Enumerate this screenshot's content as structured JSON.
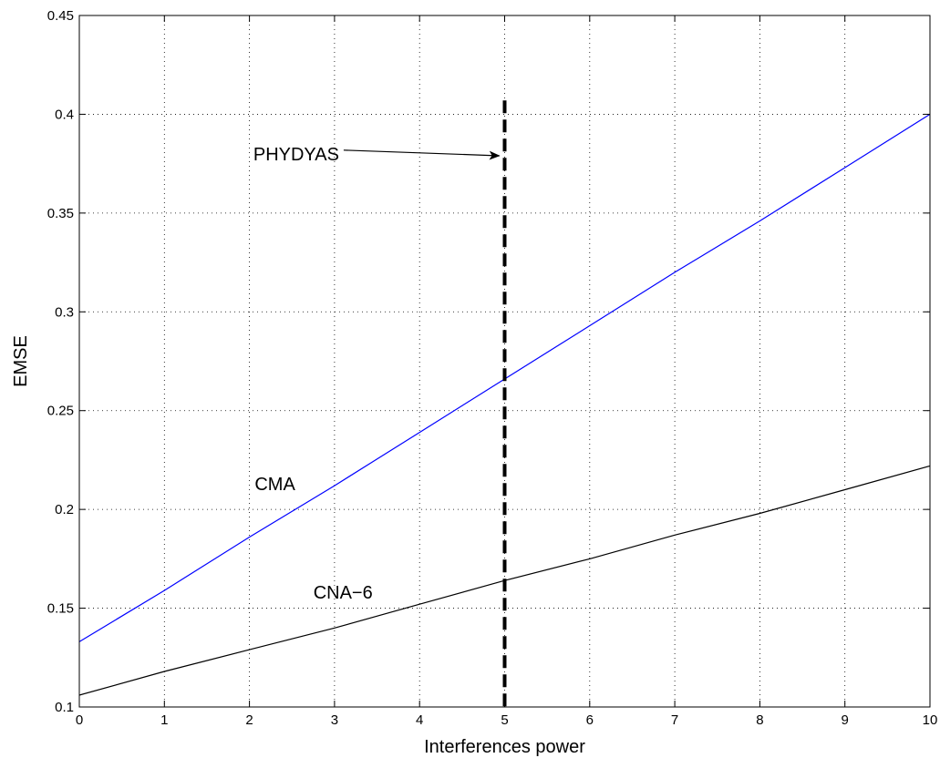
{
  "chart_data": {
    "type": "line",
    "xlabel": "Interferences power",
    "ylabel": "EMSE",
    "xlim": [
      0,
      10
    ],
    "ylim": [
      0.1,
      0.45
    ],
    "xticks": [
      "0",
      "1",
      "2",
      "3",
      "4",
      "5",
      "6",
      "7",
      "8",
      "9",
      "10"
    ],
    "yticks": [
      "0.1",
      "0.15",
      "0.2",
      "0.25",
      "0.3",
      "0.35",
      "0.4",
      "0.45"
    ],
    "grid": true,
    "series": [
      {
        "name": "CMA",
        "color": "#0000ff",
        "x": [
          0,
          1,
          2,
          3,
          4,
          5,
          6,
          7,
          8,
          9,
          10
        ],
        "y": [
          0.133,
          0.159,
          0.186,
          0.212,
          0.239,
          0.266,
          0.293,
          0.32,
          0.346,
          0.373,
          0.4
        ]
      },
      {
        "name": "CNA-6",
        "color": "#000000",
        "x": [
          0,
          1,
          2,
          3,
          4,
          5,
          6,
          7,
          8,
          9,
          10
        ],
        "y": [
          0.106,
          0.118,
          0.129,
          0.14,
          0.152,
          0.164,
          0.175,
          0.187,
          0.198,
          0.21,
          0.222
        ]
      }
    ],
    "vertical_line": {
      "x": 5,
      "y_top": 0.407,
      "style": "dashed",
      "color": "#000000"
    },
    "annotations": [
      {
        "text": "PHYDYAS",
        "x": 2.55,
        "y": 0.38,
        "arrow_to": [
          4.98,
          0.379
        ]
      },
      {
        "text": "CMA",
        "x": 2.3,
        "y": 0.213
      },
      {
        "text": "CNA−6",
        "x": 3.1,
        "y": 0.158
      }
    ]
  }
}
